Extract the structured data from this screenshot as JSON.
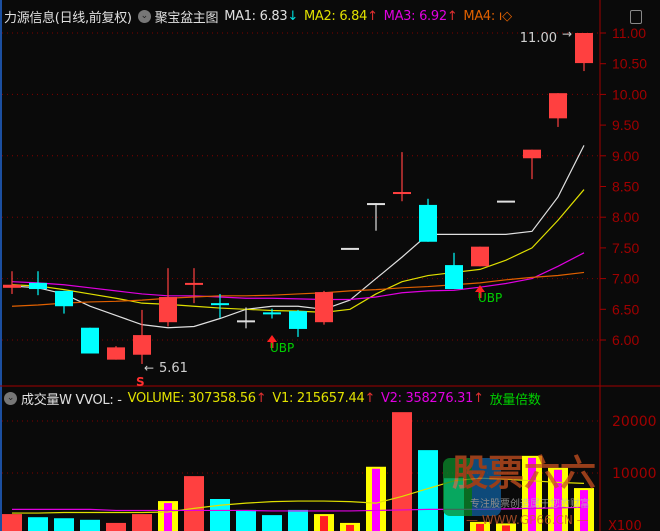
{
  "header": {
    "stock": "力源信息(日线,前复权)",
    "indicator": "聚宝盆主图",
    "ma1": "MA1: 6.83",
    "ma1_arrow": "↓",
    "ma2": "MA2: 6.84",
    "ma2_arrow": "↑",
    "ma3": "MA3: 6.92",
    "ma3_arrow": "↑",
    "ma4": "MA4: ı◇"
  },
  "volume_header": {
    "name": "成交量W VVOL: -",
    "volume": "VOLUME: 307358.56",
    "v1": "V1: 215657.44",
    "v2": "V2: 358276.31",
    "arrow": "↑",
    "extra": "放量倍数"
  },
  "annotations": {
    "high": "11.00",
    "low": "5.61",
    "sell": "S",
    "ubp": "UBP"
  },
  "watermark": {
    "brand": "股票六六",
    "slogan": "专注股票创造属于您的财富",
    "url": "— WWW.GP66.CN —"
  },
  "colors": {
    "up": "#ff4040",
    "down": "#00ffff",
    "ma1": "#e0e0e0",
    "ma2": "#e0e000",
    "ma3": "#e000e0",
    "ma4": "#e06000",
    "axis": "#a00000",
    "grid": "#800000"
  },
  "chart_data": [
    {
      "type": "candlestick",
      "ylim": [
        5.5,
        11.05
      ],
      "yticks": [
        "11.00",
        "10.50",
        "10.00",
        "9.50",
        "9.00",
        "8.50",
        "8.00",
        "7.50",
        "7.00",
        "6.50",
        "6.00"
      ],
      "ohlc": [
        [
          6.85,
          7.12,
          6.75,
          6.9
        ],
        [
          6.93,
          7.12,
          6.73,
          6.83
        ],
        [
          6.8,
          6.8,
          6.43,
          6.55
        ],
        [
          6.2,
          6.2,
          5.78,
          5.78
        ],
        [
          5.68,
          5.9,
          5.68,
          5.88
        ],
        [
          5.76,
          6.49,
          5.61,
          6.08
        ],
        [
          6.29,
          7.17,
          6.22,
          6.7
        ],
        [
          6.91,
          7.17,
          6.6,
          6.93
        ],
        [
          6.6,
          6.75,
          6.36,
          6.6
        ],
        [
          6.32,
          6.53,
          6.19,
          6.32
        ],
        [
          6.45,
          6.51,
          6.35,
          6.45
        ],
        [
          6.47,
          6.49,
          6.05,
          6.18
        ],
        [
          6.29,
          6.8,
          6.25,
          6.78
        ],
        [
          7.5,
          7.5,
          7.5,
          7.5
        ],
        [
          8.23,
          8.23,
          7.78,
          8.23
        ],
        [
          8.41,
          9.06,
          8.26,
          8.41
        ],
        [
          8.2,
          8.3,
          7.6,
          7.6
        ],
        [
          7.22,
          7.42,
          6.83,
          6.83
        ],
        [
          7.2,
          7.52,
          7.2,
          7.52
        ],
        [
          8.27,
          8.27,
          8.27,
          8.27
        ],
        [
          8.96,
          9.1,
          8.62,
          9.1
        ],
        [
          9.61,
          10.02,
          9.47,
          10.02
        ],
        [
          10.51,
          11.0,
          10.38,
          11.0
        ]
      ],
      "series": [
        {
          "name": "MA1",
          "values": [
            6.88,
            6.85,
            6.75,
            6.55,
            6.4,
            6.25,
            6.2,
            6.22,
            6.35,
            6.5,
            6.55,
            6.55,
            6.5,
            6.65,
            7.0,
            7.35,
            7.72,
            7.72,
            7.72,
            7.72,
            7.77,
            8.33,
            9.17
          ]
        },
        {
          "name": "MA2",
          "values": [
            6.9,
            6.88,
            6.82,
            6.75,
            6.68,
            6.6,
            6.58,
            6.55,
            6.52,
            6.5,
            6.48,
            6.47,
            6.45,
            6.5,
            6.75,
            6.95,
            7.05,
            7.1,
            7.15,
            7.3,
            7.5,
            7.95,
            8.45
          ]
        },
        {
          "name": "MA3",
          "values": [
            6.95,
            6.93,
            6.9,
            6.85,
            6.8,
            6.75,
            6.72,
            6.72,
            6.7,
            6.68,
            6.68,
            6.67,
            6.66,
            6.66,
            6.7,
            6.77,
            6.8,
            6.81,
            6.86,
            6.92,
            7.0,
            7.2,
            7.42
          ]
        },
        {
          "name": "MA4",
          "values": [
            6.55,
            6.57,
            6.6,
            6.62,
            6.63,
            6.65,
            6.68,
            6.7,
            6.72,
            6.72,
            6.73,
            6.75,
            6.77,
            6.8,
            6.82,
            6.85,
            6.87,
            6.9,
            6.93,
            6.98,
            7.02,
            7.05,
            7.1
          ]
        }
      ]
    },
    {
      "type": "bar",
      "yticks": [
        "20000",
        "10000"
      ],
      "unit": "X100",
      "values": [
        2100,
        1500,
        1300,
        1000,
        400,
        2100,
        4600,
        9400,
        5000,
        2900,
        1900,
        2900,
        2100,
        400,
        11200,
        21700,
        14400,
        9000,
        600,
        300,
        13300,
        11000,
        7100
      ],
      "styles": [
        "up",
        "down",
        "down",
        "down",
        "up",
        "up",
        "yellow-magenta",
        "up",
        "down",
        "down",
        "down",
        "down",
        "yellow-red",
        "yellow-red",
        "yellow-magenta",
        "up",
        "down",
        "down",
        "yellow-red",
        "yellow-red",
        "yellow-magenta",
        "yellow-magenta",
        "yellow-magenta"
      ],
      "series": [
        {
          "name": "V1",
          "values": [
            2300,
            2300,
            2400,
            2400,
            2400,
            2400,
            2500,
            3200,
            3800,
            4200,
            4500,
            4600,
            4600,
            4500,
            4200,
            5500,
            7000,
            8500,
            9000,
            8800,
            8500,
            8200,
            8000
          ]
        },
        {
          "name": "V2",
          "values": [
            3000,
            3000,
            3000,
            3000,
            2800,
            2800,
            2800,
            2800,
            2800,
            2800,
            2700,
            2700,
            2700,
            2700,
            2800,
            2900,
            3000,
            3000,
            3000,
            3100,
            3200,
            3300,
            3400
          ]
        }
      ]
    }
  ]
}
